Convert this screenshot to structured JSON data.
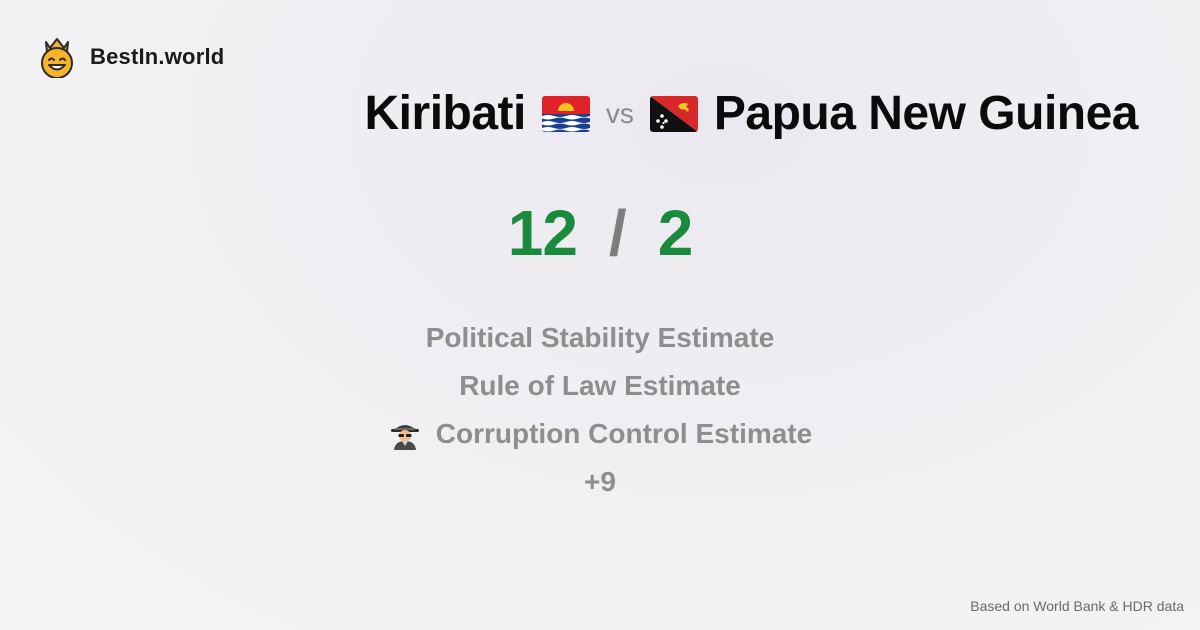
{
  "brand": {
    "name": "BestIn.world",
    "icon": "crowned-smiley-icon"
  },
  "comparison": {
    "left_country": "Kiribati",
    "left_flag": "kiribati-flag-icon",
    "vs_label": "vs",
    "right_country": "Papua New Guinea",
    "right_flag": "papua-new-guinea-flag-icon"
  },
  "score": {
    "left": "12",
    "separator": "/",
    "right": "2",
    "color": "#1a8a3c"
  },
  "criteria": [
    {
      "label": "Political Stability Estimate"
    },
    {
      "label": "Rule of Law Estimate"
    },
    {
      "label": "Corruption Control Estimate",
      "icon": "detective-icon"
    },
    {
      "label": "+9"
    }
  ],
  "footer": {
    "note": "Based on World Bank & HDR data"
  }
}
